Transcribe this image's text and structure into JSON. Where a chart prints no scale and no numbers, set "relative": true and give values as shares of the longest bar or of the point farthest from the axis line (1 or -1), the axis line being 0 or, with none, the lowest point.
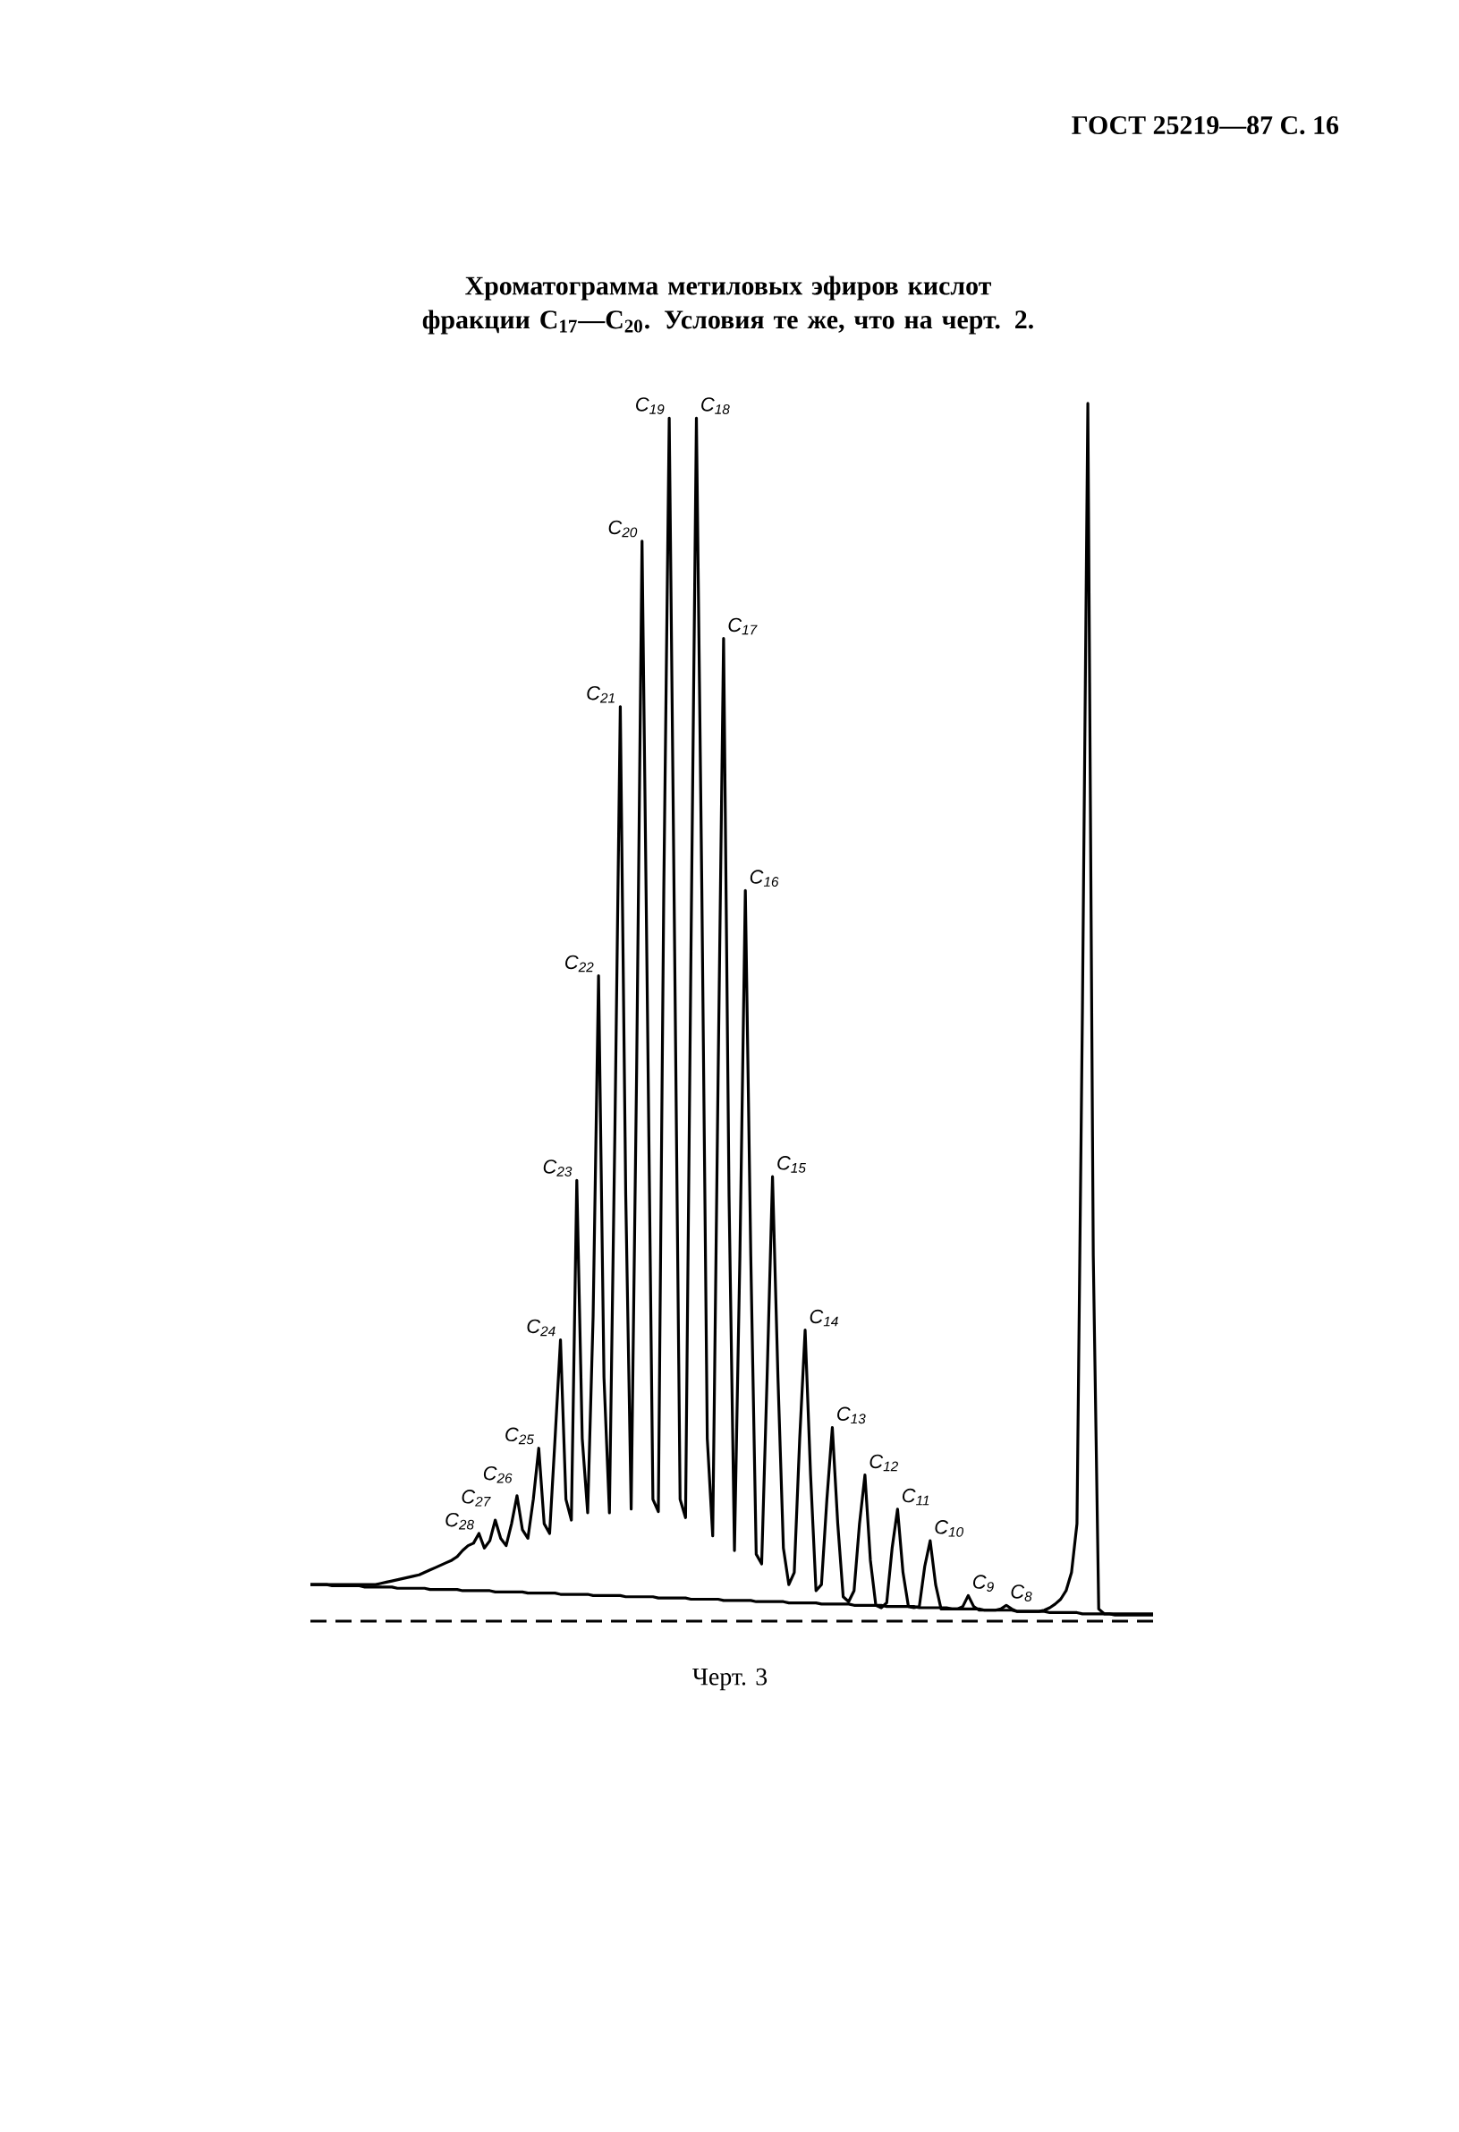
{
  "chart_data": {
    "type": "line",
    "relative": true,
    "title": "Хроматограмма метиловых эфиров кислот фракции C$_{17}$—C$_{20}$. Условия те же, что на черт. 2.",
    "categories": [
      null,
      null,
      null,
      null,
      null,
      null,
      null,
      null,
      null,
      null,
      null,
      null,
      null,
      null,
      null,
      null,
      null,
      null,
      null,
      null,
      null,
      null,
      null,
      null,
      null,
      null,
      null,
      null,
      null,
      null,
      null,
      null,
      null,
      null,
      null,
      null,
      null,
      null,
      null,
      null,
      null,
      null,
      null,
      null,
      null,
      null,
      null,
      null,
      null,
      null,
      null,
      null,
      null,
      null,
      null,
      null,
      null,
      null,
      null,
      null,
      null,
      null,
      null,
      null,
      null,
      null,
      null,
      null,
      null,
      null,
      null,
      null,
      null,
      null,
      null,
      null,
      null,
      null,
      null,
      null,
      null,
      null,
      null,
      null,
      null,
      null,
      null,
      null,
      null,
      null,
      null,
      null,
      null,
      null,
      null,
      null,
      null,
      null,
      null,
      null,
      null,
      null,
      null,
      null,
      null,
      null,
      null,
      null,
      null,
      null,
      null,
      null,
      null,
      null,
      null,
      null,
      null,
      null,
      null,
      null,
      null,
      null,
      null,
      null,
      null,
      null,
      null,
      null,
      null,
      null,
      null,
      null,
      null,
      null,
      null,
      null,
      null,
      null,
      null,
      null,
      null,
      null,
      null,
      null,
      null,
      null,
      null,
      null,
      null,
      null,
      null,
      null,
      null,
      null,
      null,
      null
    ],
    "series": [
      {
        "color": "#000000",
        "values": [
          0.03,
          0.03,
          0.03,
          0.03,
          0.03,
          0.03,
          0.03,
          0.03,
          0.03,
          0.03,
          0.03,
          0.03,
          0.03,
          0.031,
          0.032,
          0.033,
          0.034,
          0.035,
          0.036,
          0.037,
          0.038,
          0.04,
          0.042,
          0.044,
          0.046,
          0.048,
          0.05,
          0.053,
          0.058,
          0.062,
          0.064,
          0.072,
          0.06,
          0.066,
          0.083,
          0.068,
          0.062,
          0.08,
          0.103,
          0.075,
          0.068,
          0.1,
          0.142,
          0.08,
          0.072,
          0.15,
          0.231,
          0.1,
          0.083,
          0.362,
          0.15,
          0.089,
          0.25,
          0.53,
          0.2,
          0.089,
          0.4,
          0.751,
          0.35,
          0.092,
          0.45,
          0.887,
          0.5,
          0.1,
          0.09,
          0.6,
          0.988,
          0.55,
          0.1,
          0.085,
          0.55,
          0.988,
          0.6,
          0.15,
          0.07,
          0.45,
          0.807,
          0.35,
          0.058,
          0.3,
          0.6,
          0.3,
          0.055,
          0.047,
          0.2,
          0.365,
          0.2,
          0.06,
          0.03,
          0.04,
          0.15,
          0.239,
          0.12,
          0.025,
          0.03,
          0.1,
          0.159,
          0.08,
          0.02,
          0.016,
          0.025,
          0.08,
          0.12,
          0.05,
          0.013,
          0.011,
          0.015,
          0.06,
          0.092,
          0.04,
          0.012,
          0.011,
          0.012,
          0.045,
          0.066,
          0.03,
          0.01,
          0.01,
          0.01,
          0.01,
          0.012,
          0.021,
          0.012,
          0.009,
          0.009,
          0.009,
          0.009,
          0.01,
          0.013,
          0.01,
          0.008,
          0.008,
          0.008,
          0.008,
          0.008,
          0.009,
          0.011,
          0.014,
          0.018,
          0.025,
          0.04,
          0.08,
          0.5,
          1.0,
          0.3,
          0.01,
          0.006,
          0.006,
          0.006,
          0.006,
          0.006,
          0.006,
          0.006,
          0.006,
          0.006,
          0.006
        ]
      },
      {
        "color": "#000000",
        "values": [
          0.03,
          0.03,
          0.03,
          0.03,
          0.029,
          0.029,
          0.029,
          0.029,
          0.029,
          0.029,
          0.028,
          0.028,
          0.028,
          0.028,
          0.028,
          0.028,
          0.027,
          0.027,
          0.027,
          0.027,
          0.027,
          0.027,
          0.026,
          0.026,
          0.026,
          0.026,
          0.026,
          0.026,
          0.025,
          0.025,
          0.025,
          0.025,
          0.025,
          0.025,
          0.024,
          0.024,
          0.024,
          0.024,
          0.024,
          0.024,
          0.023,
          0.023,
          0.023,
          0.023,
          0.023,
          0.023,
          0.022,
          0.022,
          0.022,
          0.022,
          0.022,
          0.022,
          0.021,
          0.021,
          0.021,
          0.021,
          0.021,
          0.021,
          0.02,
          0.02,
          0.02,
          0.02,
          0.02,
          0.02,
          0.019,
          0.019,
          0.019,
          0.019,
          0.019,
          0.019,
          0.018,
          0.018,
          0.018,
          0.018,
          0.018,
          0.018,
          0.017,
          0.017,
          0.017,
          0.017,
          0.017,
          0.017,
          0.016,
          0.016,
          0.016,
          0.016,
          0.016,
          0.016,
          0.015,
          0.015,
          0.015,
          0.015,
          0.015,
          0.015,
          0.014,
          0.014,
          0.014,
          0.014,
          0.014,
          0.014,
          0.013,
          0.013,
          0.013,
          0.013,
          0.013,
          0.013,
          0.012,
          0.012,
          0.012,
          0.012,
          0.012,
          0.012,
          0.011,
          0.011,
          0.011,
          0.011,
          0.011,
          0.011,
          0.01,
          0.01,
          0.01,
          0.01,
          0.01,
          0.01,
          0.009,
          0.009,
          0.009,
          0.009,
          0.009,
          0.009,
          0.008,
          0.008,
          0.008,
          0.008,
          0.008,
          0.008,
          0.007,
          0.007,
          0.007,
          0.007,
          0.007,
          0.007,
          0.006,
          0.006,
          0.006,
          0.006,
          0.006,
          0.006,
          0.005,
          0.005,
          0.005,
          0.005,
          0.005,
          0.005,
          0.005,
          0.005
        ]
      }
    ],
    "ref_lines": [
      {
        "axis": "y",
        "value": 0,
        "line_style": "dashed",
        "color": "#000000"
      }
    ],
    "annotations": [
      "ГОСТ 25219—87 С. 16",
      "Черт. 3",
      "C$_{28}$",
      "C$_{27}$",
      "C$_{26}$",
      "C$_{25}$",
      "C$_{24}$",
      "C$_{23}$",
      "C$_{22}$",
      "C$_{21}$",
      "C$_{20}$",
      "C$_{19}$",
      "C$_{18}$",
      "C$_{17}$",
      "C$_{16}$",
      "C$_{15}$",
      "C$_{14}$",
      "C$_{13}$",
      "C$_{12}$",
      "C$_{11}$",
      "C$_{10}$",
      "C$_{9}$",
      "C$_{8}$"
    ]
  }
}
